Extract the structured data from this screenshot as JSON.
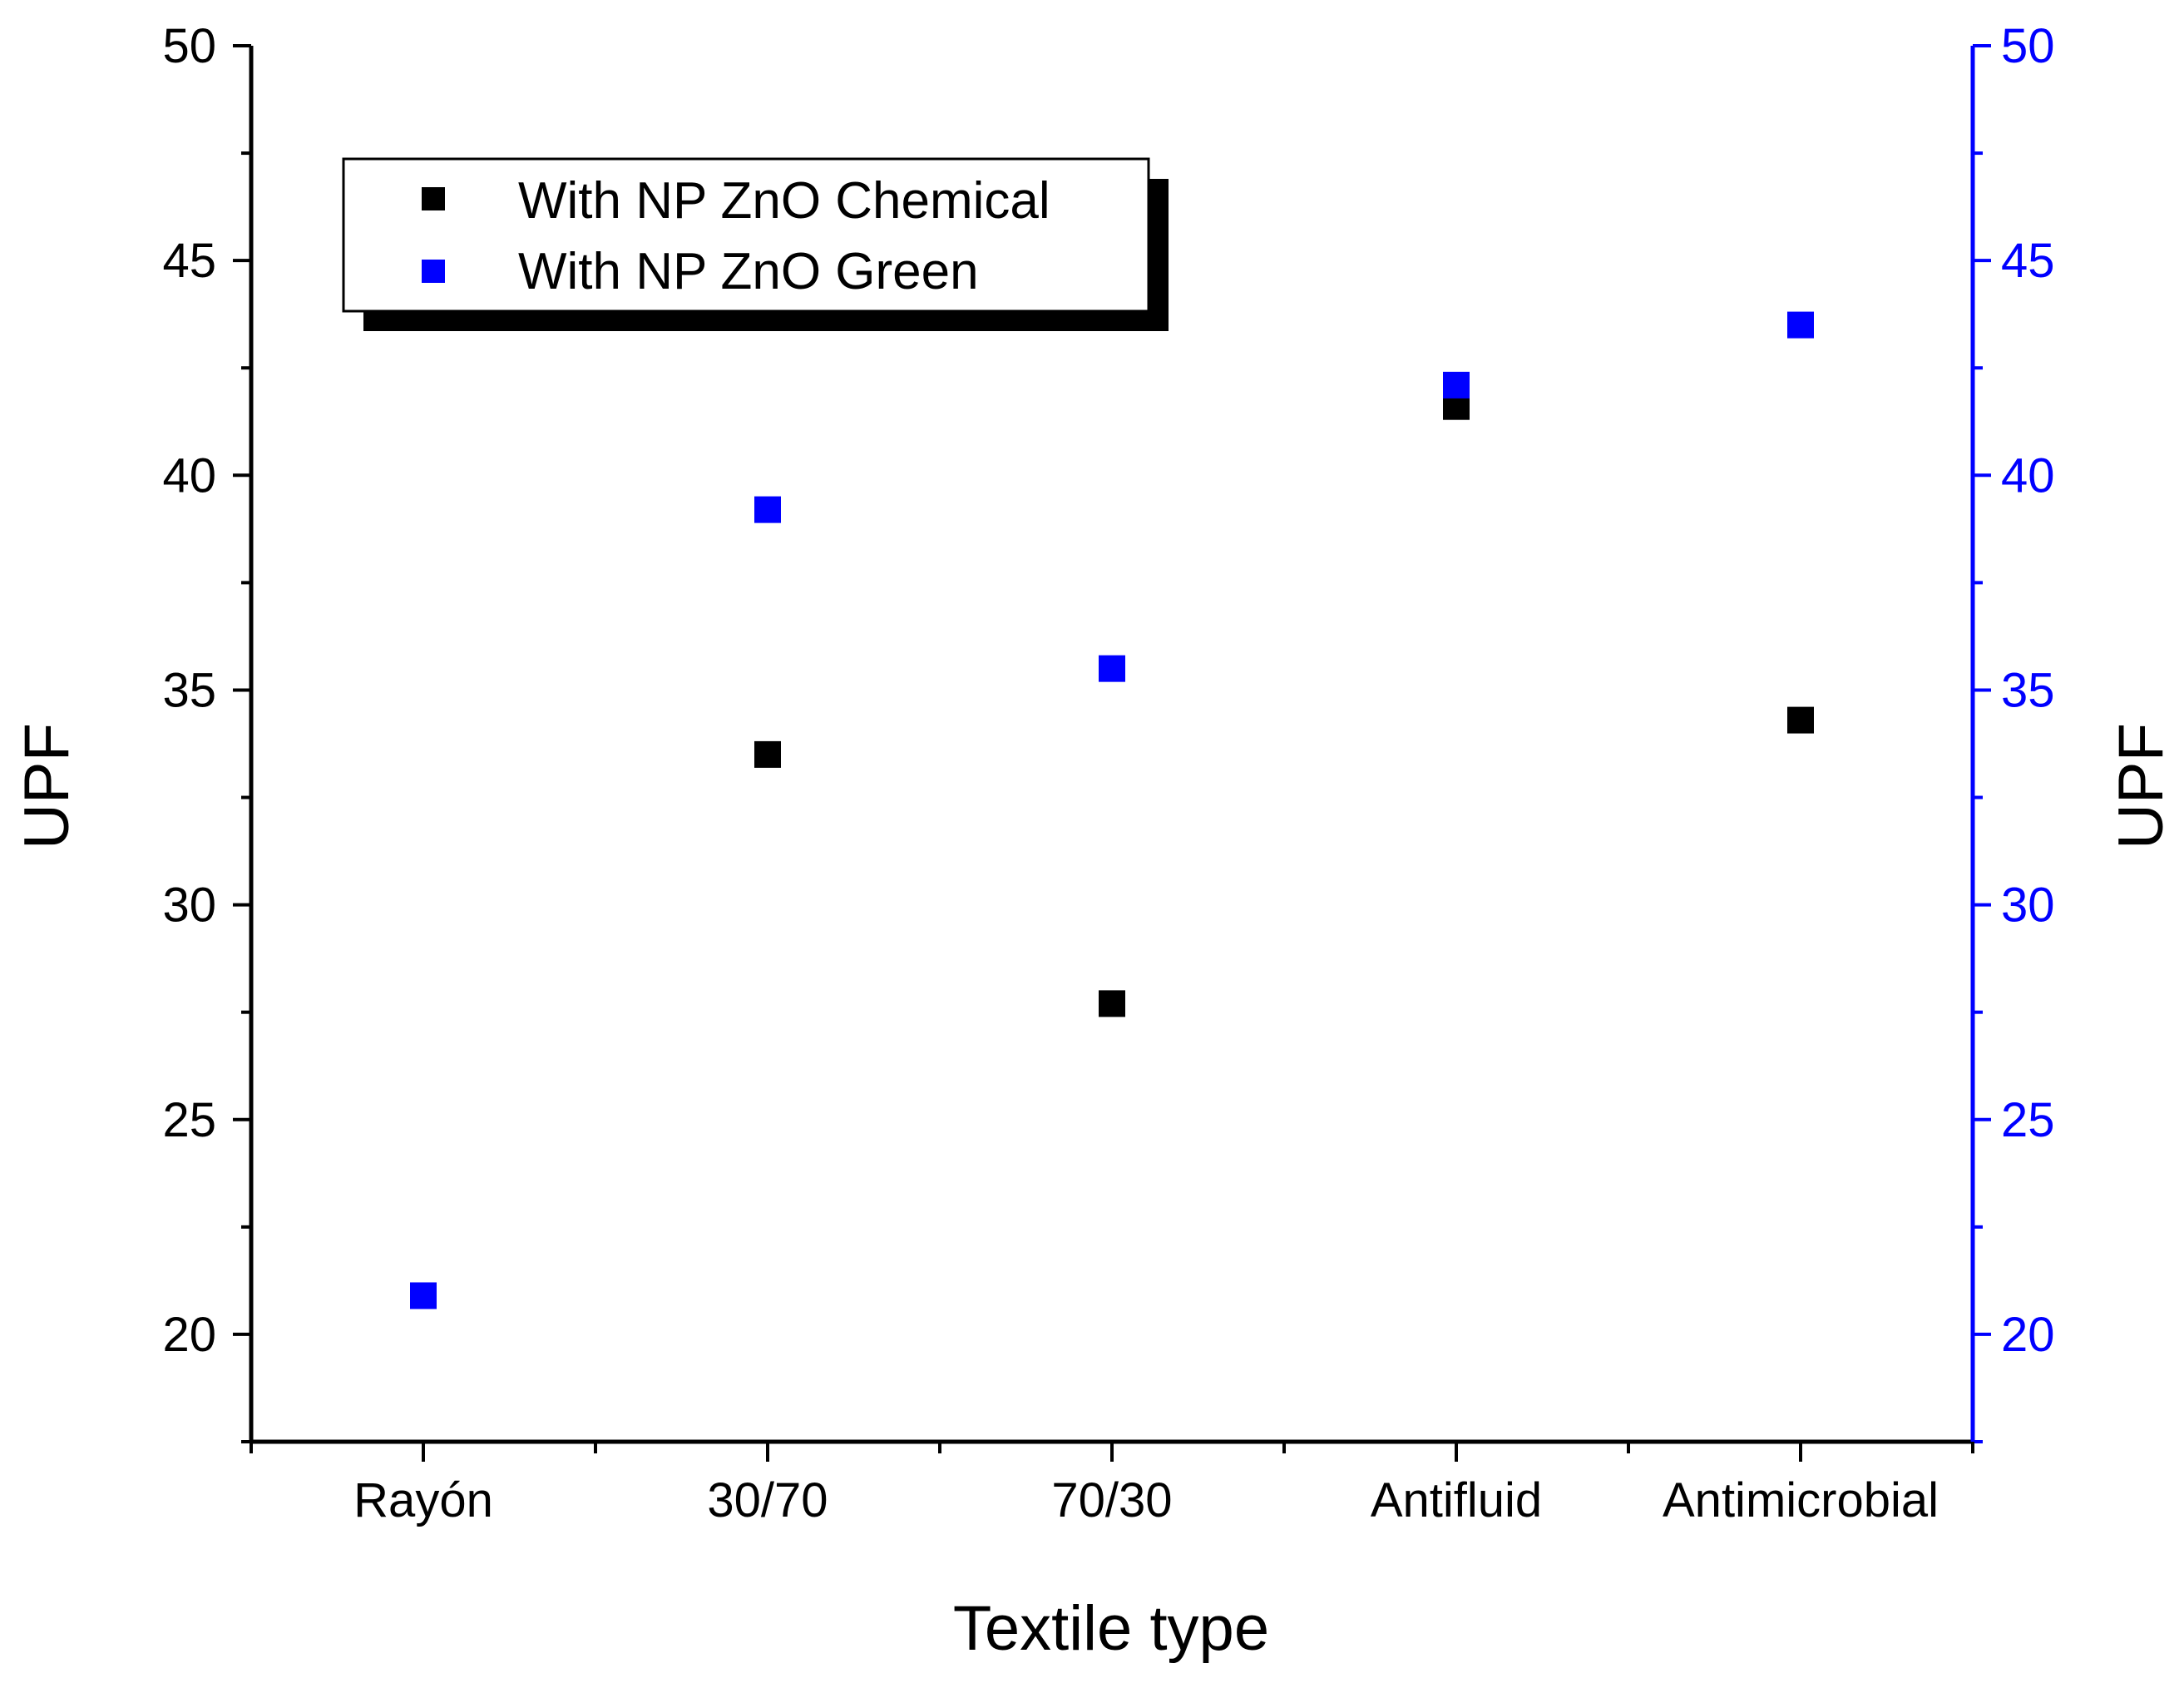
{
  "chart_data": {
    "type": "scatter",
    "title": "",
    "xlabel": "Textile type",
    "ylabel": "UPF",
    "y2label": "UPF",
    "categories": [
      "Rayón",
      "30/70",
      "70/30",
      "Antifluid",
      "Antimicrobial"
    ],
    "ylim": [
      17.5,
      50
    ],
    "y2lim": [
      17.5,
      50
    ],
    "yticks": [
      20,
      25,
      30,
      35,
      40,
      45,
      50
    ],
    "grid": false,
    "legend_position": "top-left",
    "series": [
      {
        "name": "With NP ZnO Chemical",
        "color": "#000000",
        "axis": "left",
        "values": [
          null,
          33.5,
          27.7,
          41.6,
          34.3
        ]
      },
      {
        "name": "With NP ZnO Green",
        "color": "#0000ff",
        "axis": "right",
        "values": [
          20.9,
          39.2,
          35.5,
          42.1,
          43.5
        ]
      }
    ],
    "left_axis_color": "#000000",
    "right_axis_color": "#0000ff"
  }
}
